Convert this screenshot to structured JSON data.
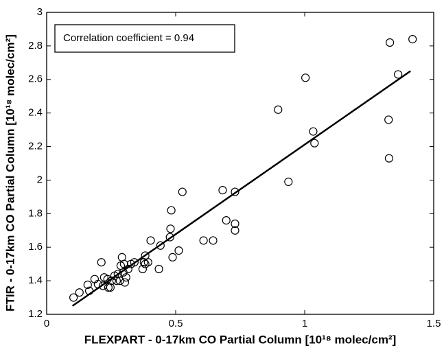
{
  "chart_data": {
    "type": "scatter",
    "xlabel": "FLEXPART - 0-17km CO Partial Column [10¹⁸ molec/cm²]",
    "ylabel": "FTIR - 0-17km CO Partial Column [10¹⁸ molec/cm²]",
    "annotation": "Correlation coefficient = 0.94",
    "xlim": [
      0,
      1.5
    ],
    "xticks": [
      0,
      0.5,
      1,
      1.5
    ],
    "ylim": [
      1.2,
      3
    ],
    "yticks": [
      1.2,
      1.4,
      1.6,
      1.8,
      2,
      2.2,
      2.4,
      2.6,
      2.8,
      3
    ],
    "color": "#000000",
    "x": [
      0.104,
      0.127,
      0.159,
      0.165,
      0.186,
      0.199,
      0.212,
      0.218,
      0.223,
      0.236,
      0.239,
      0.247,
      0.252,
      0.263,
      0.271,
      0.276,
      0.284,
      0.287,
      0.292,
      0.297,
      0.3,
      0.303,
      0.308,
      0.316,
      0.327,
      0.34,
      0.372,
      0.377,
      0.382,
      0.382,
      0.393,
      0.403,
      0.435,
      0.441,
      0.478,
      0.48,
      0.483,
      0.488,
      0.512,
      0.526,
      0.608,
      0.645,
      0.682,
      0.696,
      0.73,
      0.73,
      0.73,
      0.897,
      0.937,
      1.003,
      1.033,
      1.038,
      1.325,
      1.327,
      1.33,
      1.362,
      1.418
    ],
    "y": [
      1.3,
      1.33,
      1.376,
      1.34,
      1.41,
      1.38,
      1.51,
      1.37,
      1.42,
      1.41,
      1.36,
      1.36,
      1.4,
      1.43,
      1.4,
      1.44,
      1.4,
      1.49,
      1.54,
      1.45,
      1.5,
      1.39,
      1.42,
      1.47,
      1.5,
      1.51,
      1.47,
      1.51,
      1.55,
      1.5,
      1.51,
      1.64,
      1.47,
      1.61,
      1.66,
      1.71,
      1.82,
      1.54,
      1.58,
      1.93,
      1.64,
      1.64,
      1.94,
      1.76,
      1.74,
      1.93,
      1.7,
      2.42,
      1.99,
      2.61,
      2.29,
      2.22,
      2.36,
      2.13,
      2.82,
      2.63,
      2.84
    ],
    "fit_line": {
      "x": [
        0.1,
        1.41
      ],
      "y": [
        1.25,
        2.65
      ]
    }
  }
}
